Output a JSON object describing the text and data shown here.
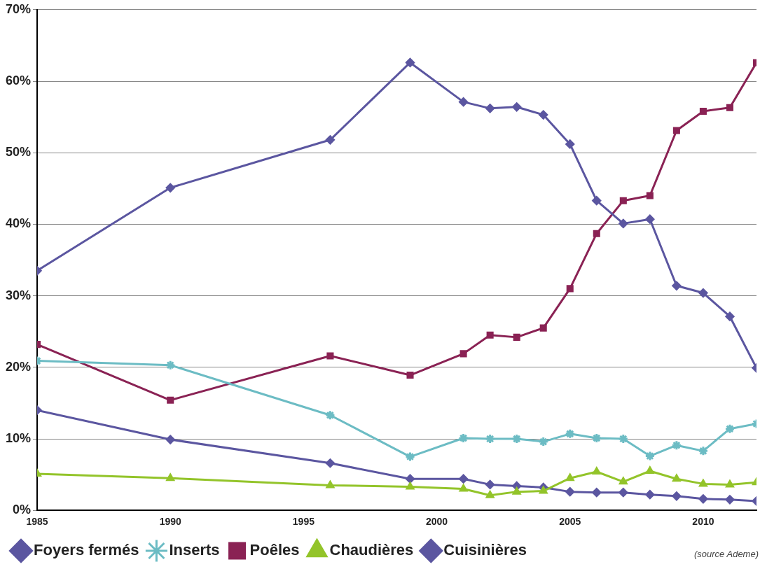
{
  "chart_data": {
    "type": "line",
    "x": [
      1985,
      1990,
      1996,
      1999,
      2001,
      2002,
      2003,
      2004,
      2005,
      2006,
      2007,
      2008,
      2009,
      2010,
      2011,
      2012
    ],
    "series": [
      {
        "name": "Foyers fermés",
        "color": "#5b56a0",
        "marker": "diamond",
        "values": [
          33.5,
          45.1,
          51.8,
          62.6,
          57.1,
          56.2,
          56.4,
          55.3,
          51.2,
          43.3,
          40.1,
          40.7,
          31.4,
          30.4,
          27.1,
          19.9
        ]
      },
      {
        "name": "Inserts",
        "color": "#6cbcc4",
        "marker": "cross",
        "values": [
          20.9,
          20.3,
          13.3,
          7.5,
          10.1,
          10.0,
          10.0,
          9.6,
          10.7,
          10.1,
          10.0,
          7.6,
          9.1,
          8.3,
          11.4,
          12.1
        ]
      },
      {
        "name": "Poêles",
        "color": "#8a2254",
        "marker": "square",
        "values": [
          23.2,
          15.4,
          21.6,
          18.9,
          21.9,
          24.5,
          24.2,
          25.5,
          31.0,
          38.7,
          43.3,
          44.0,
          53.1,
          55.8,
          56.3,
          62.6
        ]
      },
      {
        "name": "Chaudières",
        "color": "#93c42a",
        "marker": "triangle",
        "values": [
          5.1,
          4.5,
          3.5,
          3.3,
          3.0,
          2.1,
          2.6,
          2.7,
          4.5,
          5.4,
          4.0,
          5.5,
          4.4,
          3.7,
          3.6,
          3.9
        ]
      },
      {
        "name": "Cuisinières",
        "color": "#5b56a0",
        "marker": "diamond",
        "values": [
          14.0,
          9.9,
          6.6,
          4.4,
          4.4,
          3.6,
          3.4,
          3.2,
          2.6,
          2.5,
          2.5,
          2.2,
          2.0,
          1.6,
          1.5,
          1.3
        ]
      }
    ],
    "xlim": [
      1985,
      2012
    ],
    "xticks": [
      1985,
      1990,
      1995,
      2000,
      2005,
      2010
    ],
    "ylim": [
      0,
      70
    ],
    "yticks": [
      {
        "value": 0,
        "label": "0%"
      },
      {
        "value": 10,
        "label": "10%"
      },
      {
        "value": 20,
        "label": "20%"
      },
      {
        "value": 30,
        "label": "30%"
      },
      {
        "value": 40,
        "label": "40%"
      },
      {
        "value": 50,
        "label": "50%"
      },
      {
        "value": 60,
        "label": "60%"
      },
      {
        "value": 70,
        "label": "70%"
      }
    ],
    "grid": "y",
    "legend": "bottom",
    "annotations": [
      "(source Ademe)"
    ]
  }
}
